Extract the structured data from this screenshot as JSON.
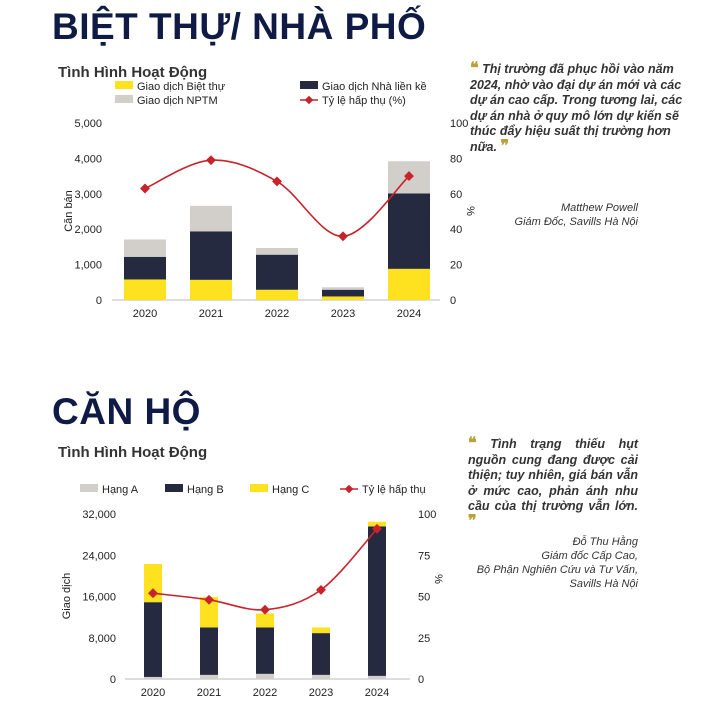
{
  "section1": {
    "heading": "BIỆT THỰ/ NHÀ PHỐ",
    "chart_title": "Tình Hình Hoạt Động",
    "quote_open": "❝",
    "quote_close": "❞",
    "quote": "Thị trường đã phục hồi vào năm 2024, nhờ vào đại dự án mới và các dự án cao cấp. Trong tương lai, các dự án nhà ở quy mô lớn dự kiến sẽ thúc đẩy hiệu suất thị trường hơn nữa.",
    "attribution": {
      "name": "Matthew Powell",
      "title": "Giám Đốc, Savills Hà Nội"
    }
  },
  "section2": {
    "heading": "CĂN HỘ",
    "chart_title": "Tình Hình Hoạt Động",
    "quote_open": "❝",
    "quote_close": "❞",
    "quote": "Tình trạng thiếu hụt nguồn cung đang được cải thiện; tuy nhiên, giá bán vẫn ở mức cao, phản ánh nhu cầu của thị trường vẫn lớn.",
    "attribution": {
      "name": "Đỗ Thu Hằng",
      "line1": "Giám đốc Cấp Cao,",
      "line2": "Bộ Phận Nghiên Cứu và Tư Vấn,",
      "line3": "Savills Hà Nội"
    }
  },
  "chart_data": [
    {
      "type": "bar",
      "stacked": true,
      "title": "Tình Hình Hoạt Động",
      "categories": [
        "2020",
        "2021",
        "2022",
        "2023",
        "2024"
      ],
      "ylabel": "Căn bán",
      "y2label": "%",
      "ylim": [
        0,
        5000
      ],
      "yticks": [
        "0",
        "1,000",
        "2,000",
        "3,000",
        "4,000",
        "5,000"
      ],
      "ytick_values": [
        0,
        1000,
        2000,
        3000,
        4000,
        5000
      ],
      "y2lim": [
        0,
        100
      ],
      "y2ticks": [
        "0",
        "20",
        "40",
        "60",
        "80",
        "100"
      ],
      "y2tick_values": [
        0,
        20,
        40,
        60,
        80,
        100
      ],
      "legend_position": "top",
      "series": [
        {
          "name": "Giao dịch Biệt thự",
          "color": "#ffe21f",
          "values": [
            580,
            570,
            290,
            100,
            880
          ]
        },
        {
          "name": "Giao dịch Nhà liền kề",
          "color": "#252a40",
          "values": [
            640,
            1370,
            990,
            190,
            2130
          ]
        },
        {
          "name": "Giao dịch NPTM",
          "color": "#d2cfcb",
          "values": [
            490,
            720,
            190,
            70,
            910
          ]
        },
        {
          "name": "Tỷ lệ hấp thụ (%)",
          "color": "#c8232b",
          "kind": "line",
          "axis": "right",
          "values": [
            63,
            79,
            67,
            36,
            70
          ]
        }
      ]
    },
    {
      "type": "bar",
      "stacked": true,
      "title": "Tình Hình Hoạt Động",
      "categories": [
        "2020",
        "2021",
        "2022",
        "2023",
        "2024"
      ],
      "ylabel": "Giao dịch",
      "y2label": "%",
      "ylim": [
        0,
        32000
      ],
      "yticks": [
        "0",
        "8,000",
        "16,000",
        "24,000",
        "32,000"
      ],
      "ytick_values": [
        0,
        8000,
        16000,
        24000,
        32000
      ],
      "y2lim": [
        0,
        100
      ],
      "y2ticks": [
        "0",
        "25",
        "50",
        "75",
        "100"
      ],
      "y2tick_values": [
        0,
        25,
        50,
        75,
        100
      ],
      "legend_position": "top",
      "series": [
        {
          "name": "Hạng A",
          "color": "#d2cfcb",
          "values": [
            400,
            800,
            1000,
            800,
            600
          ]
        },
        {
          "name": "Hạng B",
          "color": "#252a40",
          "values": [
            14500,
            9200,
            9000,
            8100,
            29000
          ]
        },
        {
          "name": "Hạng C",
          "color": "#ffe21f",
          "values": [
            7400,
            5900,
            2700,
            1100,
            900
          ]
        },
        {
          "name": "Tỷ lệ hấp thụ",
          "color": "#c8232b",
          "kind": "line",
          "axis": "right",
          "values": [
            52,
            48,
            42,
            54,
            91
          ]
        }
      ]
    }
  ]
}
